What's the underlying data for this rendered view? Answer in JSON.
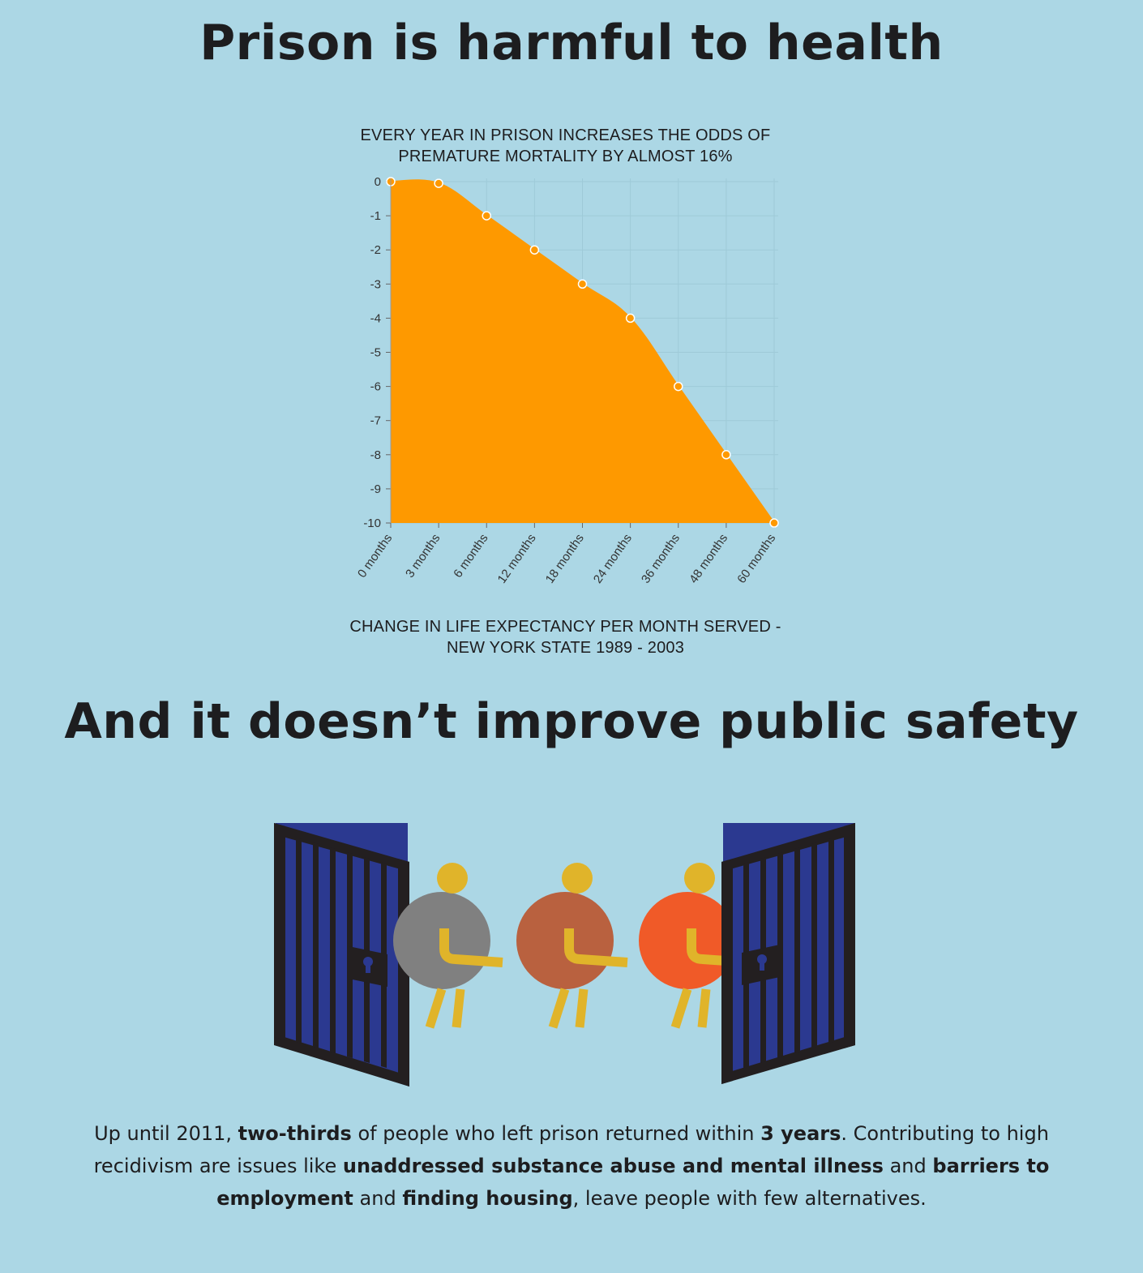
{
  "heading1": "Prison is harmful to health",
  "heading2": "And it doesn’t improve public safety",
  "chart_data": {
    "type": "area",
    "title_lines": [
      "EVERY YEAR IN PRISON INCREASES THE ODDS OF",
      "PREMATURE MORTALITY BY ALMOST 16%"
    ],
    "caption_lines": [
      "CHANGE IN LIFE EXPECTANCY PER MONTH SERVED -",
      "NEW YORK STATE 1989 - 2003"
    ],
    "categories": [
      "0 months",
      "3 months",
      "6 months",
      "12 months",
      "18 months",
      "24 months",
      "36 months",
      "48 months",
      "60 months"
    ],
    "values": [
      0,
      -0.05,
      -1,
      -2,
      -3,
      -4,
      -6,
      -8,
      -10
    ],
    "ylim": [
      -10,
      0
    ],
    "yticks": [
      "0",
      "-1",
      "-2",
      "-3",
      "-4",
      "-5",
      "-6",
      "-7",
      "-8",
      "-9",
      "-10"
    ],
    "grid": true,
    "colors": {
      "fill": "#fe9900",
      "point": "#fe9900",
      "point_stroke": "#ffffff",
      "grid": "#9ecad8"
    }
  },
  "illustration": {
    "name": "prison-gates-people-illustration",
    "colors": {
      "gate_bars": "#231f20",
      "gate_panel": "#2b3990",
      "head": "#e0b42a",
      "person1": "#808080",
      "person2": "#b9613f",
      "person3": "#f05a28"
    }
  },
  "paragraph": {
    "segments": [
      {
        "text": "Up until 2011, ",
        "bold": false
      },
      {
        "text": "two-thirds",
        "bold": true
      },
      {
        "text": " of people who left prison returned within ",
        "bold": false
      },
      {
        "text": "3 years",
        "bold": true
      },
      {
        "text": ". Contributing to high recidivism are issues like ",
        "bold": false
      },
      {
        "text": "unaddressed substance abuse and mental illness",
        "bold": true
      },
      {
        "text": " and ",
        "bold": false
      },
      {
        "text": "barriers to employment",
        "bold": true
      },
      {
        "text": " and ",
        "bold": false
      },
      {
        "text": "finding housing",
        "bold": true
      },
      {
        "text": ", leave people with few alternatives.",
        "bold": false
      }
    ]
  }
}
